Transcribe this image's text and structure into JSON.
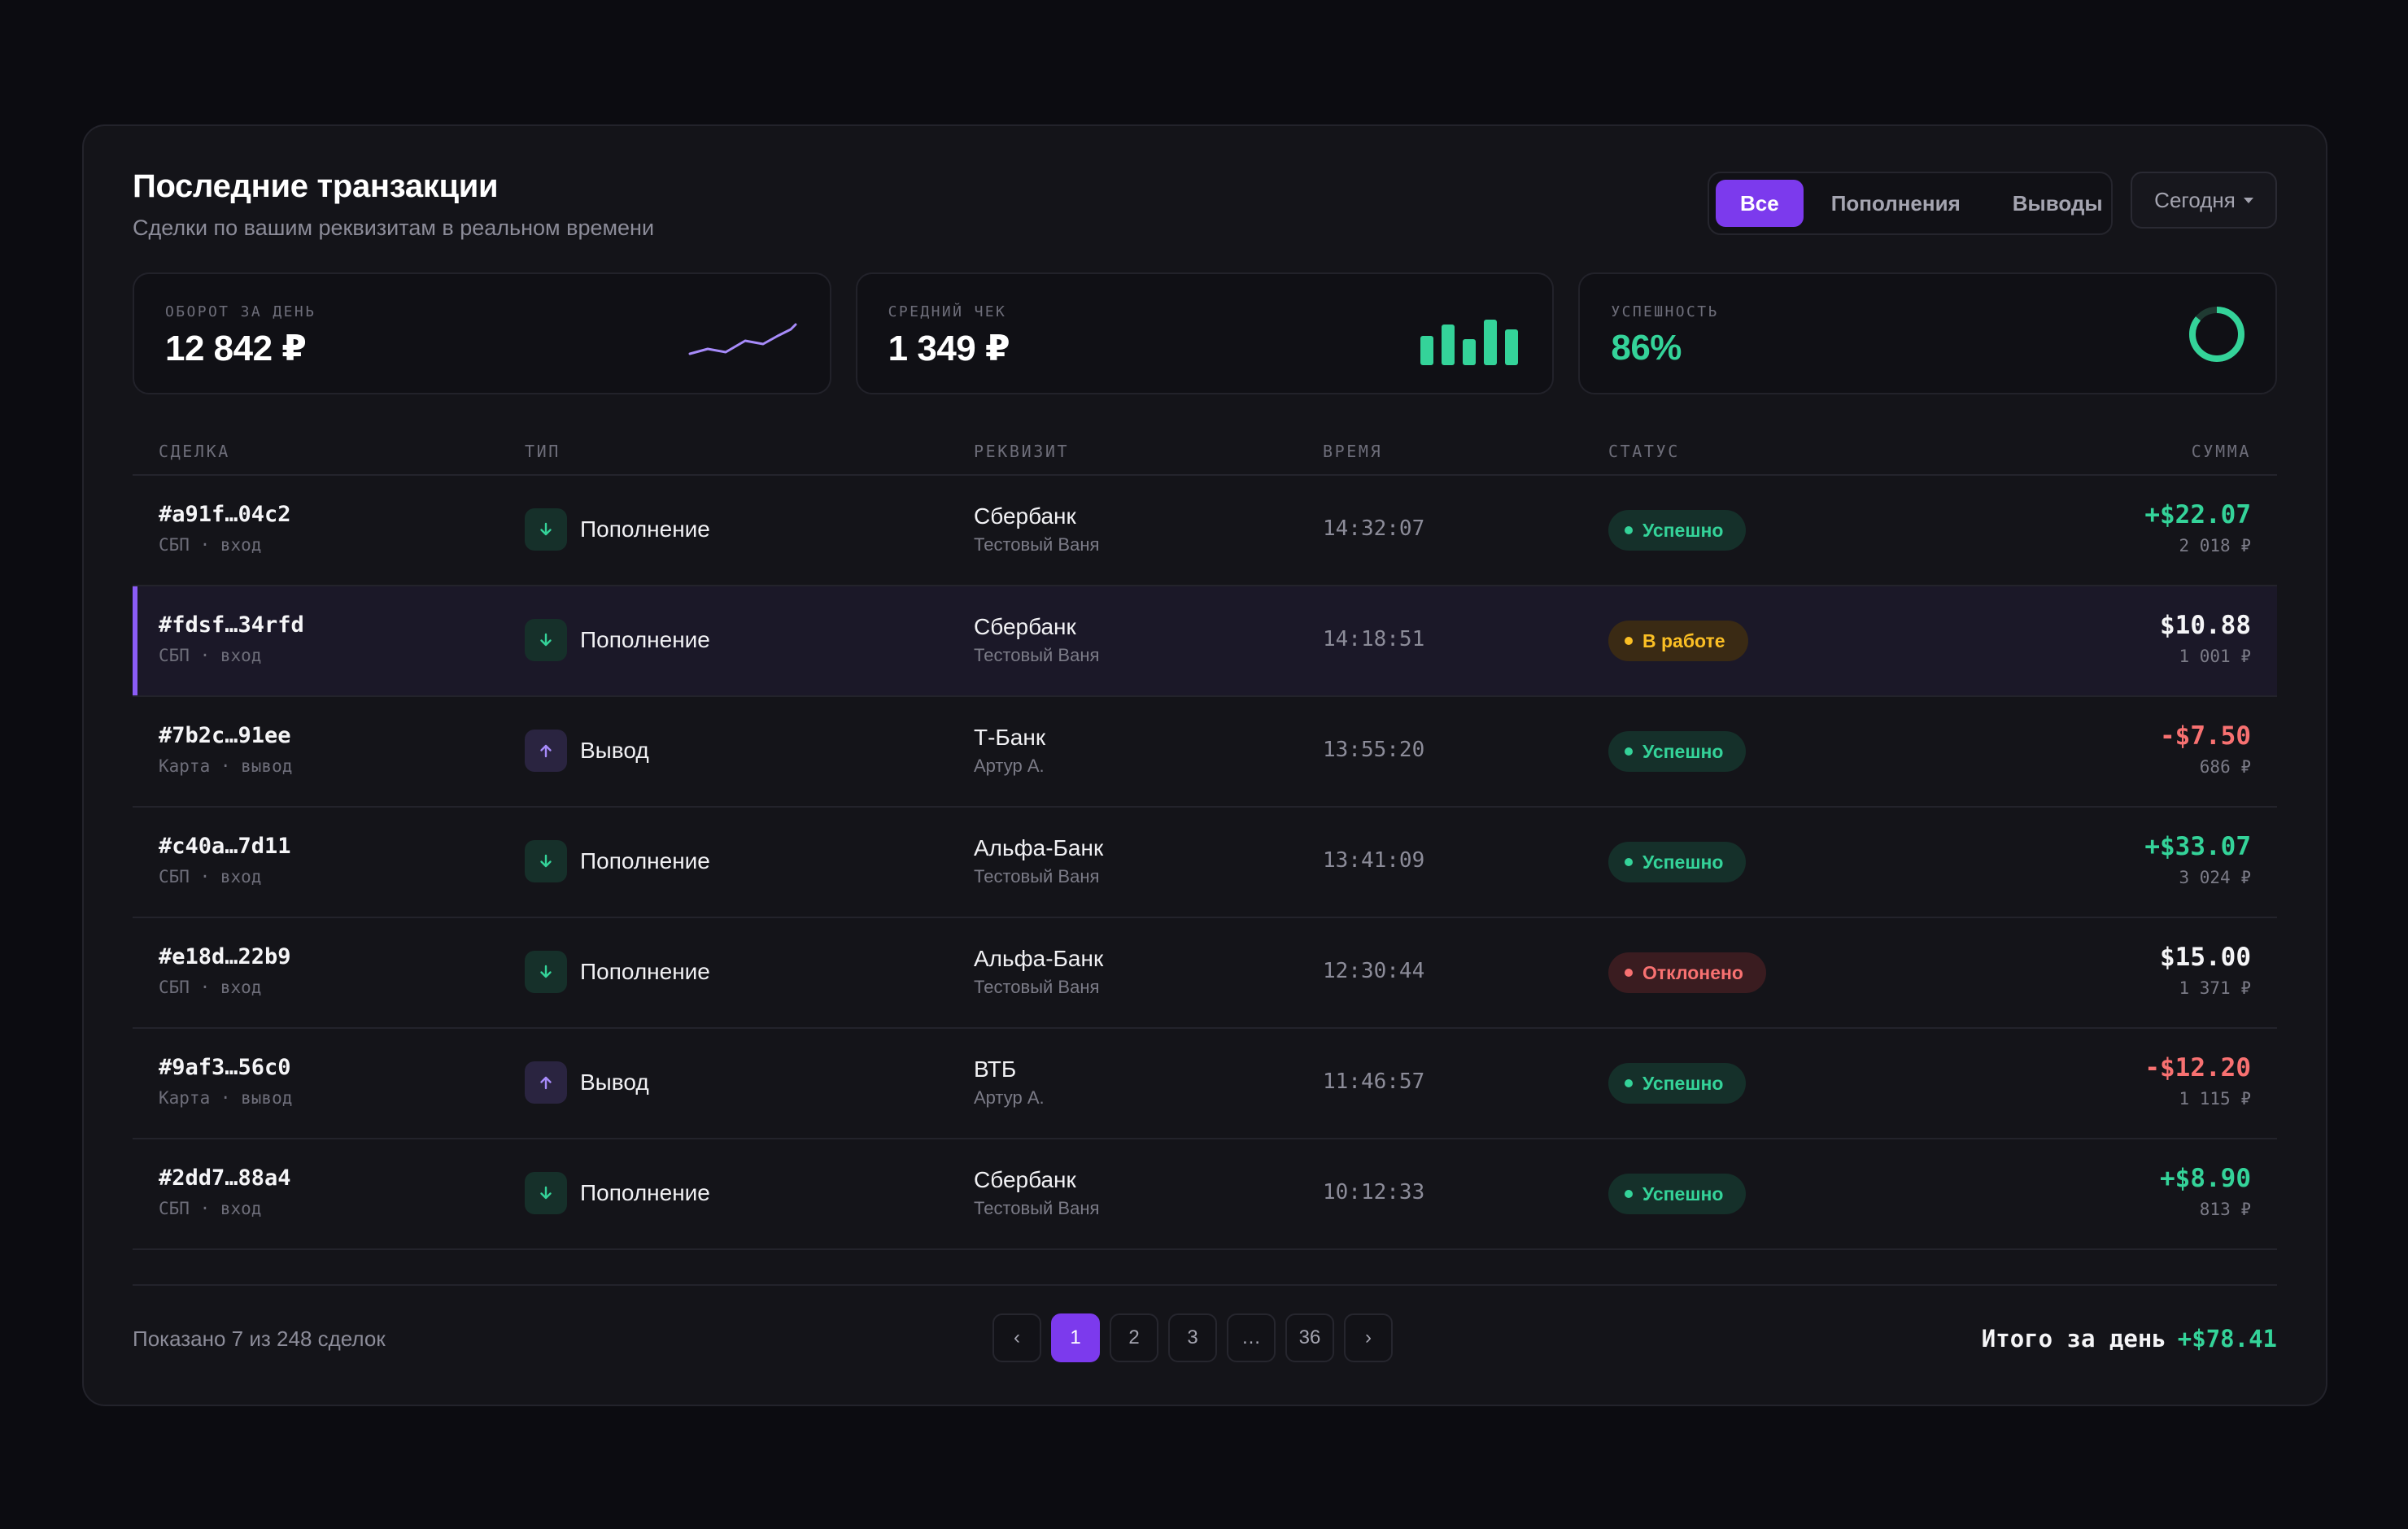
{
  "header": {
    "title": "Последние транзакции",
    "subtitle": "Сделки по вашим реквизитам в реальном времени"
  },
  "filters": {
    "tabs": [
      {
        "label": "Все",
        "active": true
      },
      {
        "label": "Пополнения",
        "active": false
      },
      {
        "label": "Выводы",
        "active": false
      }
    ],
    "date_label": "Сегодня"
  },
  "stats": [
    {
      "label": "ОБОРОТ ЗА ДЕНЬ",
      "value": "12 842 ₽",
      "visual": "sparkline-chart"
    },
    {
      "label": "СРЕДНИЙ ЧЕК",
      "value": "1 349 ₽",
      "visual": "bar-mini-chart"
    },
    {
      "label": "УСПЕШНОСТЬ",
      "value": "86%",
      "visual": "donut-chart",
      "fraction": 0.86
    }
  ],
  "table": {
    "columns": [
      "СДЕЛКА",
      "ТИП",
      "РЕКВИЗИТ",
      "ВРЕМЯ",
      "СТАТУС",
      "СУММА"
    ],
    "rows": [
      {
        "id": "#a91f…04c2",
        "method": "СБП · вход",
        "type": "Пополнение",
        "direction": "in",
        "bank": "Сбербанк",
        "holder": "Тестовый Ваня",
        "time": "14:32:07",
        "status": "Успешно",
        "status_kind": "ok",
        "amount": "+$22.07",
        "amount_kind": "pos",
        "rub": "2 018 ₽",
        "highlight": false
      },
      {
        "id": "#fdsf…34rfd",
        "method": "СБП · вход",
        "type": "Пополнение",
        "direction": "in",
        "bank": "Сбербанк",
        "holder": "Тестовый Ваня",
        "time": "14:18:51",
        "status": "В работе",
        "status_kind": "work",
        "amount": "$10.88",
        "amount_kind": "neu",
        "rub": "1 001 ₽",
        "highlight": true
      },
      {
        "id": "#7b2c…91ee",
        "method": "Карта · вывод",
        "type": "Вывод",
        "direction": "out",
        "bank": "Т-Банк",
        "holder": "Артур А.",
        "time": "13:55:20",
        "status": "Успешно",
        "status_kind": "ok",
        "amount": "-$7.50",
        "amount_kind": "neg",
        "rub": "686 ₽",
        "highlight": false
      },
      {
        "id": "#c40a…7d11",
        "method": "СБП · вход",
        "type": "Пополнение",
        "direction": "in",
        "bank": "Альфа-Банк",
        "holder": "Тестовый Ваня",
        "time": "13:41:09",
        "status": "Успешно",
        "status_kind": "ok",
        "amount": "+$33.07",
        "amount_kind": "pos",
        "rub": "3 024 ₽",
        "highlight": false
      },
      {
        "id": "#e18d…22b9",
        "method": "СБП · вход",
        "type": "Пополнение",
        "direction": "in",
        "bank": "Альфа-Банк",
        "holder": "Тестовый Ваня",
        "time": "12:30:44",
        "status": "Отклонено",
        "status_kind": "fail",
        "amount": "$15.00",
        "amount_kind": "neu",
        "rub": "1 371 ₽",
        "highlight": false
      },
      {
        "id": "#9af3…56c0",
        "method": "Карта · вывод",
        "type": "Вывод",
        "direction": "out",
        "bank": "ВТБ",
        "holder": "Артур А.",
        "time": "11:46:57",
        "status": "Успешно",
        "status_kind": "ok",
        "amount": "-$12.20",
        "amount_kind": "neg",
        "rub": "1 115 ₽",
        "highlight": false
      },
      {
        "id": "#2dd7…88a4",
        "method": "СБП · вход",
        "type": "Пополнение",
        "direction": "in",
        "bank": "Сбербанк",
        "holder": "Тестовый Ваня",
        "time": "10:12:33",
        "status": "Успешно",
        "status_kind": "ok",
        "amount": "+$8.90",
        "amount_kind": "pos",
        "rub": "813 ₽",
        "highlight": false
      }
    ]
  },
  "footer": {
    "shown_text": "Показано 7 из 248 сделок",
    "pages": [
      {
        "label": "‹",
        "kind": "prev"
      },
      {
        "label": "1",
        "kind": "page",
        "active": true
      },
      {
        "label": "2",
        "kind": "page"
      },
      {
        "label": "3",
        "kind": "page"
      },
      {
        "label": "…",
        "kind": "ellipsis"
      },
      {
        "label": "36",
        "kind": "page"
      },
      {
        "label": "›",
        "kind": "next"
      }
    ],
    "total_label": "Итого за день",
    "total_value": "+$78.41"
  },
  "colors": {
    "accent": "#7c3aed",
    "positive": "#34d399",
    "negative": "#f87171",
    "warning": "#fbbf24"
  }
}
